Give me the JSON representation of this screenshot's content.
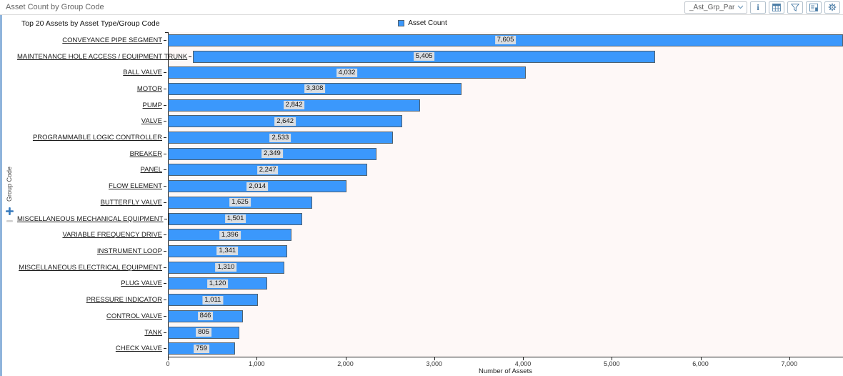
{
  "header": {
    "title": "Asset Count by Group Code",
    "parameter_select": {
      "value": "_Ast_Grp_Par",
      "chevron": "chevron-down-icon"
    },
    "toolbar_icons": [
      "info-icon",
      "table-icon",
      "filter-icon",
      "report-icon",
      "settings-icon"
    ]
  },
  "y_axis_panel": {
    "label": "Group Code",
    "expand_icon": "plus-icon",
    "collapse_icon": "minus-icon"
  },
  "colors": {
    "bar_fill": "#3b98fc",
    "bar_border": "#50606e",
    "plot_bg": "#fef8f7",
    "icon_blue": "#4a7ca6"
  },
  "chart_data": {
    "type": "bar",
    "orientation": "horizontal",
    "title": "Top 20 Assets by Asset Type/Group Code",
    "legend": [
      "Asset Count"
    ],
    "legend_position": "top-center",
    "xlabel": "Number of Assets",
    "ylabel": "Group Code",
    "xlim": [
      0,
      7605
    ],
    "grid": false,
    "x_ticks": [
      0,
      1000,
      2000,
      3000,
      4000,
      5000,
      6000,
      7000
    ],
    "x_tick_labels": [
      "0",
      "1,000",
      "2,000",
      "3,000",
      "4,000",
      "5,000",
      "6,000",
      "7,000"
    ],
    "categories": [
      "CONVEYANCE PIPE SEGMENT",
      "MAINTENANCE HOLE ACCESS / EQUIPMENT TRUNK",
      "BALL VALVE",
      "MOTOR",
      "PUMP",
      "VALVE",
      "PROGRAMMABLE LOGIC CONTROLLER",
      "BREAKER",
      "PANEL",
      "FLOW ELEMENT",
      "BUTTERFLY VALVE",
      "MISCELLANEOUS MECHANICAL EQUIPMENT",
      "VARIABLE FREQUENCY DRIVE",
      "INSTRUMENT LOOP",
      "MISCELLANEOUS ELECTRICAL EQUIPMENT",
      "PLUG VALVE",
      "PRESSURE INDICATOR",
      "CONTROL VALVE",
      "TANK",
      "CHECK VALVE"
    ],
    "values": [
      7605,
      5405,
      4032,
      3308,
      2842,
      2642,
      2533,
      2349,
      2247,
      2014,
      1625,
      1501,
      1396,
      1341,
      1310,
      1120,
      1011,
      846,
      805,
      759
    ],
    "value_labels": [
      "7,605",
      "5,405",
      "4,032",
      "3,308",
      "2,842",
      "2,642",
      "2,533",
      "2,349",
      "2,247",
      "2,014",
      "1,625",
      "1,501",
      "1,396",
      "1,341",
      "1,310",
      "1,120",
      "1,011",
      "846",
      "805",
      "759"
    ]
  }
}
